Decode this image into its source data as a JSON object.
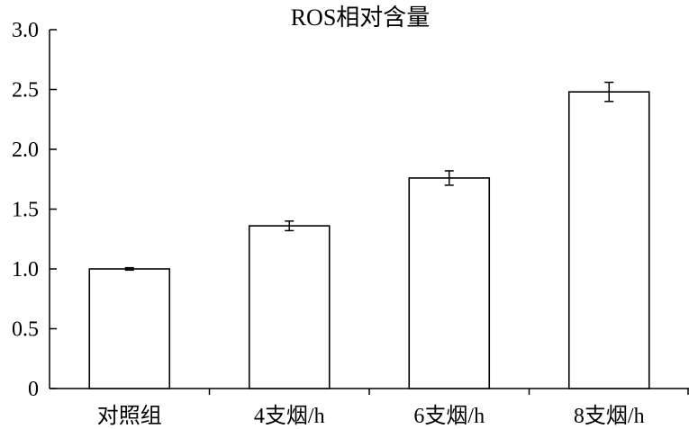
{
  "chart_data": {
    "type": "bar",
    "title": "ROS相对含量",
    "categories": [
      "对照组",
      "4支烟/h",
      "6支烟/h",
      "8支烟/h"
    ],
    "values": [
      1.0,
      1.36,
      1.76,
      2.48
    ],
    "errors": [
      0.01,
      0.04,
      0.06,
      0.08
    ],
    "ylim": [
      0,
      3.0
    ],
    "yticks": [
      0,
      0.5,
      1.0,
      1.5,
      2.0,
      2.5,
      3.0
    ],
    "ytick_labels": [
      "0",
      "0.5",
      "1.0",
      "1.5",
      "2.0",
      "2.5",
      "3.0"
    ],
    "xlabel": "",
    "ylabel": "",
    "grid": false,
    "bar_fill": "#ffffff",
    "bar_stroke": "#000000"
  }
}
